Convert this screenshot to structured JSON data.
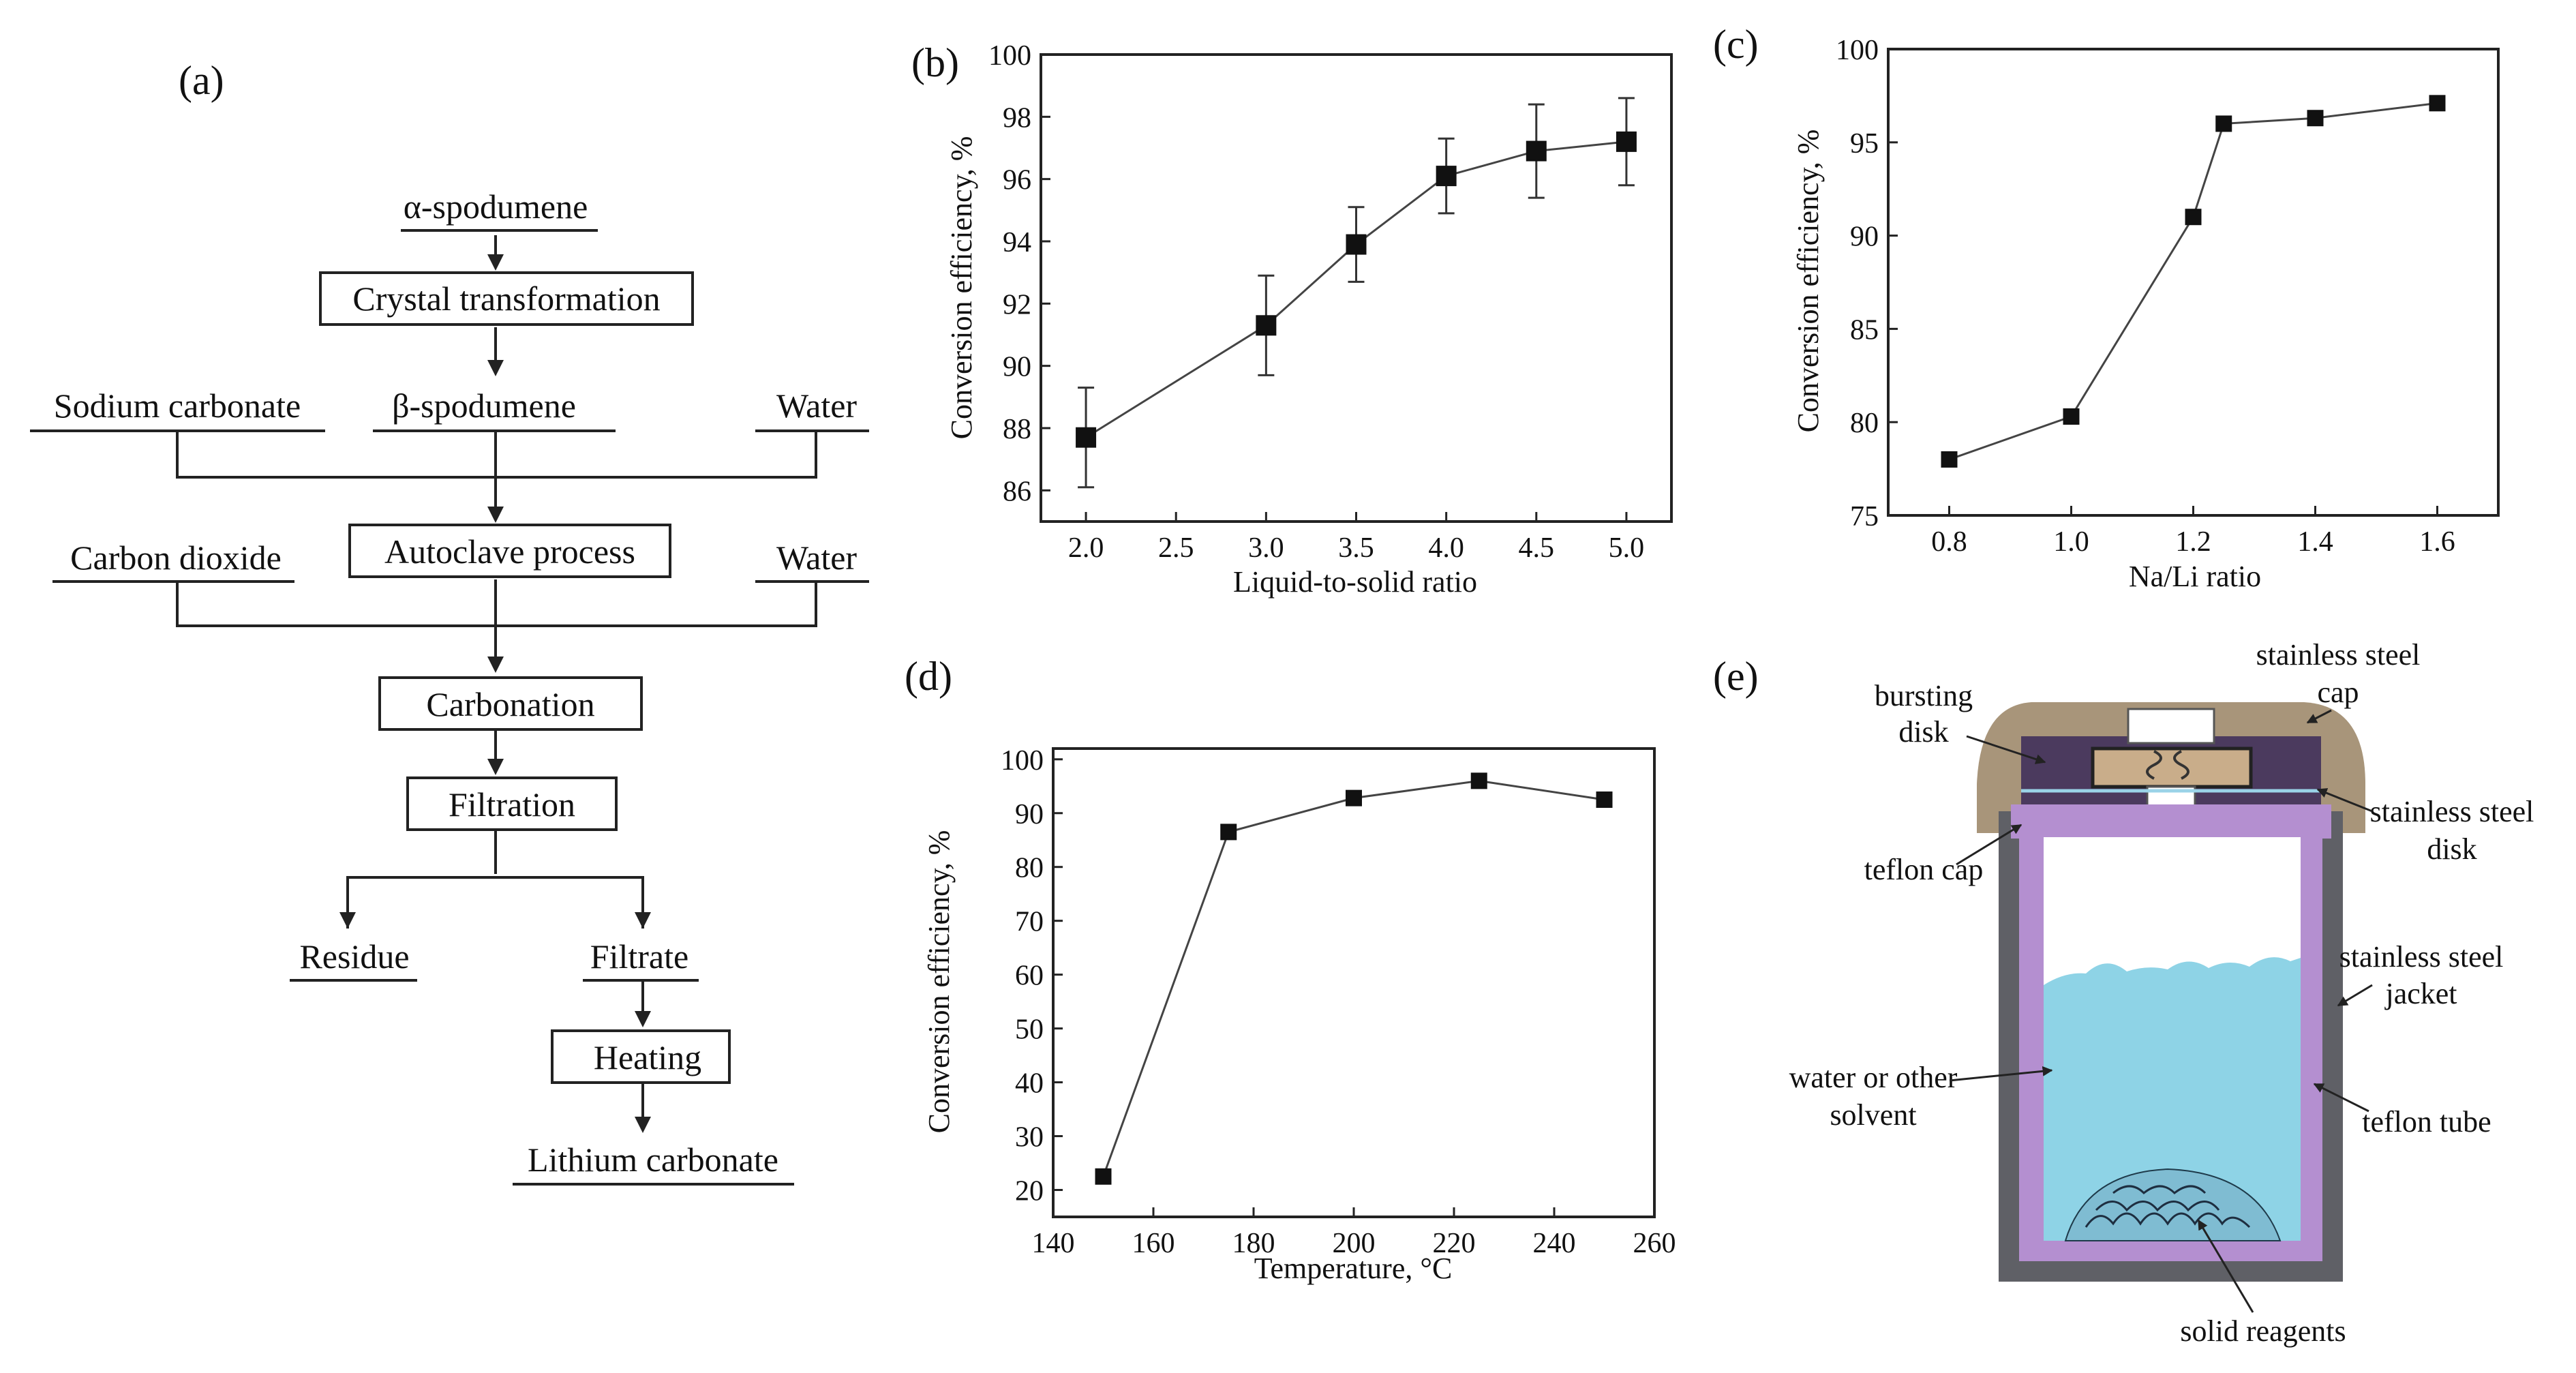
{
  "panels": {
    "a": "(a)",
    "b": "(b)",
    "c": "(c)",
    "d": "(d)",
    "e": "(e)"
  },
  "flowchart": {
    "alpha_spodumene": "α-spodumene",
    "crystal_transformation": "Crystal transformation",
    "sodium_carbonate": "Sodium carbonate",
    "beta_spodumene": "β-spodumene",
    "water_1": "Water",
    "carbon_dioxide": "Carbon dioxide",
    "autoclave_process": "Autoclave process",
    "water_2": "Water",
    "carbonation": "Carbonation",
    "filtration": "Filtration",
    "residue": "Residue",
    "filtrate": "Filtrate",
    "heating": "Heating",
    "lithium_carbonate": "Lithium carbonate"
  },
  "chart_data": [
    {
      "id": "b",
      "type": "line",
      "title": "",
      "xlabel": "Liquid-to-solid ratio",
      "ylabel": "Conversion efficiency, %",
      "xlim": [
        1.75,
        5.25
      ],
      "ylim": [
        85,
        100
      ],
      "xticks": [
        2.0,
        2.5,
        3.0,
        3.5,
        4.0,
        4.5,
        5.0
      ],
      "xtick_labels": [
        "2.0",
        "2.5",
        "3.0",
        "3.5",
        "4.0",
        "4.5",
        "5.0"
      ],
      "yticks": [
        86,
        88,
        90,
        92,
        94,
        96,
        98,
        100
      ],
      "ytick_labels": [
        "86",
        "88",
        "90",
        "92",
        "94",
        "96",
        "98",
        "100"
      ],
      "x": [
        2.0,
        3.0,
        3.5,
        4.0,
        4.5,
        5.0
      ],
      "y": [
        87.7,
        91.3,
        93.9,
        96.1,
        96.9,
        97.2
      ],
      "error": [
        1.6,
        1.6,
        1.2,
        1.2,
        1.5,
        1.4
      ],
      "grid": false
    },
    {
      "id": "c",
      "type": "line",
      "title": "",
      "xlabel": "Na/Li ratio",
      "ylabel": "Conversion efficiency, %",
      "xlim": [
        0.7,
        1.7
      ],
      "ylim": [
        75,
        100
      ],
      "xticks": [
        0.8,
        1.0,
        1.2,
        1.4,
        1.6
      ],
      "xtick_labels": [
        "0.8",
        "1.0",
        "1.2",
        "1.4",
        "1.6"
      ],
      "yticks": [
        75,
        80,
        85,
        90,
        95,
        100
      ],
      "ytick_labels": [
        "75",
        "80",
        "85",
        "90",
        "95",
        "100"
      ],
      "x": [
        0.8,
        1.0,
        1.2,
        1.25,
        1.4,
        1.6
      ],
      "y": [
        78.0,
        80.3,
        91.0,
        96.0,
        96.3,
        97.1
      ],
      "grid": false
    },
    {
      "id": "d",
      "type": "line",
      "title": "",
      "xlabel": "Temperature, °C",
      "ylabel": "Conversion efficiency, %",
      "xlim": [
        140,
        260
      ],
      "ylim": [
        15,
        102
      ],
      "xticks": [
        140,
        160,
        180,
        200,
        220,
        240,
        260
      ],
      "xtick_labels": [
        "140",
        "160",
        "180",
        "200",
        "220",
        "240",
        "260"
      ],
      "yticks": [
        20,
        30,
        40,
        50,
        60,
        70,
        80,
        90,
        100
      ],
      "ytick_labels": [
        "20",
        "30",
        "40",
        "50",
        "60",
        "70",
        "80",
        "90",
        "100"
      ],
      "x": [
        150,
        175,
        200,
        225,
        250
      ],
      "y": [
        22.5,
        86.5,
        92.8,
        96.0,
        92.5
      ],
      "grid": false
    }
  ],
  "autoclave_diagram": {
    "stainless_steel_cap_1": "stainless steel",
    "stainless_steel_cap_2": "cap",
    "bursting_disk_1": "bursting",
    "bursting_disk_2": "disk",
    "stainless_steel_disk_1": "stainless steel",
    "stainless_steel_disk_2": "disk",
    "teflon_cap": "teflon cap",
    "stainless_steel_jacket_1": "stainless steel",
    "stainless_steel_jacket_2": "jacket",
    "water_solvent_1": "water or other",
    "water_solvent_2": "solvent",
    "teflon_tube": "teflon tube",
    "solid_reagents": "solid reagents",
    "colors": {
      "cap": "#a8957a",
      "dark_purple": "#4b3a5e",
      "teflon": "#b48fd0",
      "jacket": "#5f6066",
      "liquid": "#8ed3e6"
    }
  }
}
